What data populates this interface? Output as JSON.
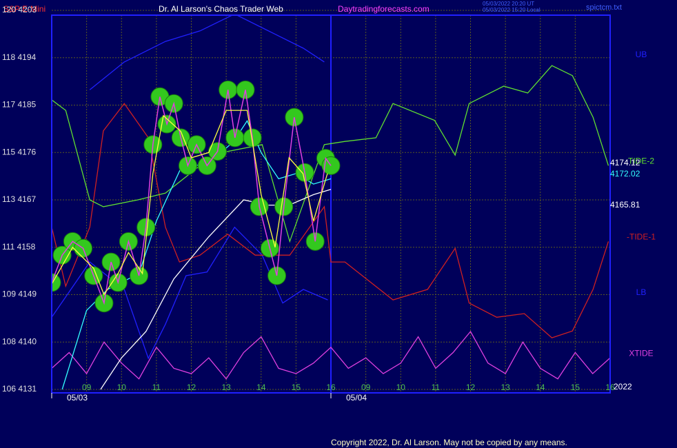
{
  "chart_data": {
    "type": "line",
    "subtitle": "S&P E-Mini",
    "title": "Dr. Al Larson's Chaos Trader Web",
    "site": "Daytradingforecasts.com",
    "timestamps": [
      "05/03/2022 20:20 UT",
      "05/03/2022 15:20 Local"
    ],
    "file": "spictcm.txt",
    "year": "2022",
    "copyright": "Copyright 2022, Dr. Al Larson. May not be copied by any means.",
    "last_values": [
      {
        "label": "4174.12",
        "color": "#ffffff"
      },
      {
        "label": "4172.02",
        "color": "#33ffff"
      },
      {
        "label": "4165.81",
        "color": "#ffffff"
      }
    ],
    "xlim": [
      0,
      16
    ],
    "ylim": [
      4131,
      4203
    ],
    "grid": true,
    "xticks": [
      {
        "value": 1,
        "label": "09"
      },
      {
        "value": 2,
        "label": "10"
      },
      {
        "value": 3,
        "label": "11"
      },
      {
        "value": 4,
        "label": "12"
      },
      {
        "value": 5,
        "label": "13"
      },
      {
        "value": 6,
        "label": "14"
      },
      {
        "value": 7,
        "label": "15"
      },
      {
        "value": 8,
        "label": "16"
      },
      {
        "value": 9,
        "label": "09"
      },
      {
        "value": 10,
        "label": "10"
      },
      {
        "value": 11,
        "label": "11"
      },
      {
        "value": 12,
        "label": "12"
      },
      {
        "value": 13,
        "label": "13"
      },
      {
        "value": 14,
        "label": "14"
      },
      {
        "value": 15,
        "label": "15"
      },
      {
        "value": 16,
        "label": "16"
      }
    ],
    "dates": [
      {
        "value": 0,
        "label": "05/03"
      },
      {
        "value": 8,
        "label": "05/04"
      }
    ],
    "yticks": [
      {
        "value": 4131,
        "label": "106 4131"
      },
      {
        "value": 4140,
        "label": "108 4140"
      },
      {
        "value": 4149,
        "label": "109 4149"
      },
      {
        "value": 4158,
        "label": "111 4158"
      },
      {
        "value": 4167,
        "label": "113 4167"
      },
      {
        "value": 4176,
        "label": "115 4176"
      },
      {
        "value": 4185,
        "label": "117 4185"
      },
      {
        "value": 4194,
        "label": "118 4194"
      },
      {
        "value": 4203,
        "label": "120 4203"
      }
    ],
    "series": [
      {
        "name": "UB",
        "color": "#2020ff",
        "x": [
          1.09,
          2.08,
          3.26,
          4.25,
          5.24,
          6.42,
          7.21,
          7.81
        ],
        "values": [
          4187.9,
          4193.2,
          4197.1,
          4199.1,
          4202.3,
          4198.4,
          4195.8,
          4193.2
        ]
      },
      {
        "name": "LB",
        "color": "#2020ff",
        "x": [
          0,
          1.09,
          2.08,
          2.77,
          3.26,
          3.85,
          4.45,
          5.24,
          6.03,
          6.62,
          7.21,
          7.91
        ],
        "values": [
          4144.7,
          4155.2,
          4150.0,
          4136.9,
          4143.4,
          4152.6,
          4153.3,
          4161.8,
          4156.5,
          4147.4,
          4150.0,
          4148.0
        ]
      },
      {
        "name": "-TIDE-1",
        "color": "#d02020",
        "x": [
          0,
          0.4,
          1.09,
          1.48,
          2.08,
          2.77,
          3.26,
          3.66,
          4.25,
          5.04,
          5.83,
          6.82,
          7.81,
          8.0,
          8.4,
          9.78,
          10.77,
          11.56,
          11.96,
          12.75,
          13.54,
          14.33,
          14.92,
          15.51,
          15.95
        ],
        "values": [
          4161.8,
          4150.6,
          4161.8,
          4180.1,
          4185.3,
          4178.8,
          4161.8,
          4155.2,
          4156.5,
          4160.5,
          4156.5,
          4156.5,
          4165.7,
          4155.2,
          4155.2,
          4148.0,
          4150.0,
          4157.8,
          4147.4,
          4144.7,
          4145.4,
          4140.8,
          4142.1,
          4150.0,
          4159.1
        ]
      },
      {
        "name": "TIDE-2",
        "color": "#60e030",
        "x": [
          0,
          0.4,
          1.09,
          1.48,
          2.47,
          3.26,
          4.25,
          5.04,
          6.03,
          6.82,
          7.81,
          8.4,
          9.29,
          9.78,
          10.97,
          11.56,
          11.96,
          12.95,
          13.64,
          14.33,
          14.92,
          15.51,
          15.95
        ],
        "values": [
          4186.0,
          4184.0,
          4167.0,
          4165.7,
          4167.0,
          4168.3,
          4173.5,
          4176.2,
          4177.5,
          4159.1,
          4177.5,
          4178.1,
          4178.8,
          4185.3,
          4182.1,
          4175.5,
          4185.3,
          4188.6,
          4187.3,
          4192.5,
          4190.6,
          4182.7,
          4173.5
        ]
      },
      {
        "name": "XTIDE",
        "color": "#e040e0",
        "x": [
          0,
          0.5,
          1,
          1.5,
          2,
          2.5,
          3,
          3.5,
          4,
          4.5,
          5,
          5.5,
          6,
          6.5,
          7,
          7.5,
          8,
          8.5,
          9,
          9.5,
          10,
          10.5,
          11,
          11.5,
          12,
          12.5,
          13,
          13.5,
          14,
          14.5,
          15,
          15.5,
          16
        ],
        "values": [
          4135,
          4138,
          4134,
          4140,
          4136,
          4133,
          4139,
          4135,
          4134,
          4137,
          4133,
          4138,
          4141,
          4135,
          4134,
          4136,
          4139,
          4135,
          4137,
          4134,
          4136,
          4141,
          4135,
          4138,
          4142,
          4136,
          4134,
          4140,
          4135,
          4133,
          4138,
          4134,
          4137
        ]
      },
      {
        "color": "#ffffff",
        "x": [
          1.4,
          2,
          2.7,
          3.5,
          4.5,
          5.5,
          6.2,
          6.8,
          7.5,
          8.0
        ],
        "values": [
          4131,
          4137,
          4142,
          4152,
          4160,
          4167,
          4166,
          4166,
          4168,
          4169
        ]
      },
      {
        "color": "#33ffff",
        "x": [
          0.3,
          1,
          1.6,
          2.5,
          3,
          3.7,
          4.5,
          5.2,
          5.6,
          6,
          6.5,
          7,
          7.5,
          8
        ],
        "values": [
          4131,
          4146,
          4150,
          4153,
          4163,
          4173,
          4174,
          4178,
          4182,
          4176,
          4171,
          4172,
          4170,
          4171
        ]
      },
      {
        "color": "#e040e0",
        "marker_color": "#33c81e",
        "x": [
          0,
          0.3,
          0.6,
          0.9,
          1.2,
          1.5,
          1.7,
          1.9,
          2.2,
          2.5,
          2.7,
          2.9,
          3.1,
          3.3,
          3.5,
          3.7,
          3.9,
          4.15,
          4.45,
          4.75,
          5.05,
          5.25,
          5.55,
          5.75,
          5.95,
          6.25,
          6.45,
          6.65,
          6.95,
          7.25,
          7.55,
          7.85,
          8.0
        ],
        "values": [
          4151.3,
          4156.5,
          4159.1,
          4157.8,
          4152.6,
          4147.4,
          4155.2,
          4151.3,
          4159.1,
          4152.6,
          4161.8,
          4177.5,
          4186.6,
          4181.4,
          4185.3,
          4178.8,
          4173.5,
          4177.5,
          4173.5,
          4176.2,
          4187.9,
          4178.8,
          4187.9,
          4178.8,
          4165.7,
          4157.8,
          4152.6,
          4165.7,
          4182.7,
          4172.2,
          4159.1,
          4174.9,
          4173.5
        ]
      },
      {
        "color": "#ffff40",
        "x": [
          0,
          0.6,
          1.2,
          1.5,
          1.9,
          2.2,
          2.6,
          2.9,
          3.2,
          3.7,
          4.0,
          4.5,
          5.0,
          5.6,
          6.0,
          6.4,
          6.8,
          7.2,
          7.5,
          7.9
        ],
        "values": [
          4151,
          4158,
          4154,
          4149,
          4153,
          4157,
          4153,
          4172,
          4183,
          4180,
          4175,
          4176,
          4184,
          4184,
          4168,
          4158,
          4175,
          4172,
          4163,
          4172
        ]
      }
    ]
  }
}
